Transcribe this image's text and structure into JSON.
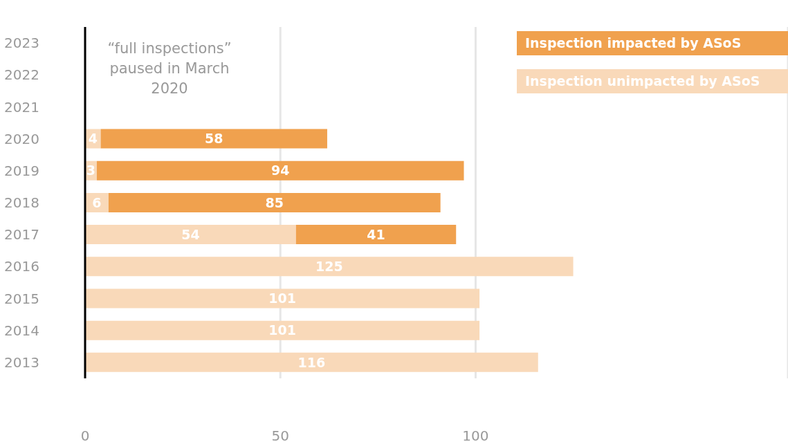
{
  "chart_data": {
    "type": "bar",
    "orientation": "horizontal",
    "stacked": true,
    "categories": [
      "2023",
      "2022",
      "2021",
      "2020",
      "2019",
      "2018",
      "2017",
      "2016",
      "2015",
      "2014",
      "2013"
    ],
    "series": [
      {
        "name": "Inspection unimpacted by ASoS",
        "color": "#f9d9b9",
        "values": [
          null,
          null,
          null,
          4,
          3,
          6,
          54,
          125,
          101,
          101,
          116
        ]
      },
      {
        "name": "Inspection impacted by ASoS",
        "color": "#f0a14e",
        "values": [
          null,
          null,
          null,
          58,
          94,
          85,
          41,
          null,
          null,
          null,
          null
        ]
      }
    ],
    "xlim": [
      0,
      180
    ],
    "xticks": [
      0,
      50,
      100
    ],
    "grid": "x",
    "legend": "top right",
    "data_labels": true,
    "annotations": [
      "“full inspections” paused in March 2020"
    ]
  }
}
